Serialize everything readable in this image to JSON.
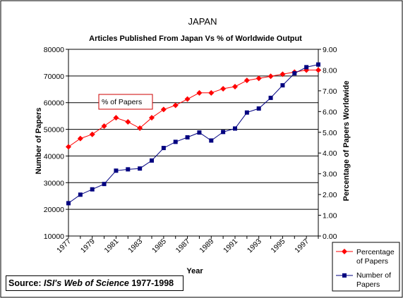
{
  "chart_data": {
    "type": "line",
    "title": "JAPAN",
    "subtitle": "Articles Published From Japan Vs % of Worldwide Output",
    "xlabel": "Year",
    "ylabel_left": "Number of Papers",
    "ylabel_right": "Percentage of Papers Worldwide",
    "x": [
      1977,
      1978,
      1979,
      1980,
      1981,
      1982,
      1983,
      1984,
      1985,
      1986,
      1987,
      1988,
      1989,
      1990,
      1991,
      1992,
      1993,
      1994,
      1995,
      1996,
      1997,
      1998
    ],
    "x_tick_labels": [
      "1977",
      "1979",
      "1981",
      "1983",
      "1985",
      "1987",
      "1989",
      "1991",
      "1993",
      "1995",
      "1997"
    ],
    "y_left_ticks": [
      "10000",
      "20000",
      "30000",
      "40000",
      "50000",
      "60000",
      "70000",
      "80000"
    ],
    "y_right_ticks": [
      "0.00",
      "1.00",
      "2.00",
      "3.00",
      "4.00",
      "5.00",
      "6.00",
      "7.00",
      "8.00",
      "9.00"
    ],
    "y_left_range": [
      10000,
      80000
    ],
    "y_right_range": [
      0,
      9
    ],
    "grid": "horizontal",
    "legend_position": "bottom-right",
    "series": [
      {
        "name": "Percentage of Papers",
        "axis": "right",
        "color": "#ff0000",
        "marker": "diamond",
        "values": [
          4.3,
          4.7,
          4.9,
          5.3,
          5.7,
          5.5,
          5.2,
          5.7,
          6.1,
          6.3,
          6.6,
          6.9,
          6.9,
          7.1,
          7.2,
          7.5,
          7.6,
          7.7,
          7.8,
          7.9,
          8.0,
          8.0
        ]
      },
      {
        "name": "Number of Papers",
        "axis": "left",
        "color": "#000080",
        "marker": "square",
        "values": [
          22300,
          25500,
          27500,
          29500,
          34500,
          35000,
          35300,
          38300,
          43000,
          45300,
          47000,
          48800,
          45800,
          49000,
          50300,
          56300,
          57800,
          61800,
          66500,
          71000,
          73300,
          74300
        ]
      }
    ],
    "annotation": "% of Papers"
  },
  "source": {
    "prefix": "Source: ",
    "name": "ISI's Web of Science",
    "range": " 1977-1998"
  }
}
